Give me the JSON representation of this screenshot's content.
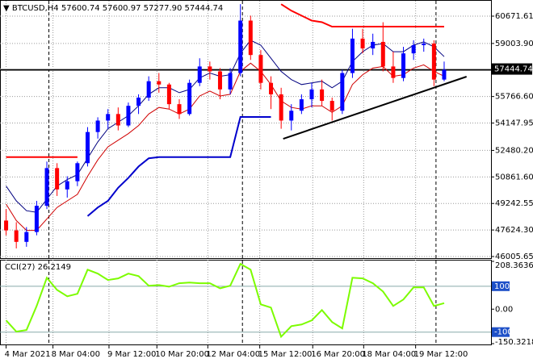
{
  "header": "▼ BTCUSD,H4  57600.74 57600.97 57277.90 57444.74",
  "chart_data": [
    {
      "type": "candlestick",
      "open": [
        48200,
        47600,
        46900,
        47500,
        49100,
        51400,
        50100,
        50600,
        51700,
        53600,
        54300,
        54700,
        54000,
        55200,
        55700,
        56700,
        56500,
        55300,
        54700,
        56600,
        57600,
        57300,
        56200,
        57200,
        60400,
        58300,
        56600,
        55900,
        54300,
        54900,
        55600,
        56200,
        55500,
        54900,
        57200,
        59300,
        58700,
        59100,
        57600,
        56900,
        58400,
        58900,
        59000,
        56800
      ],
      "high": [
        48900,
        48100,
        47800,
        49400,
        51800,
        51700,
        50900,
        51800,
        53900,
        54500,
        55000,
        55100,
        55400,
        55900,
        57000,
        57200,
        56600,
        55600,
        56800,
        58100,
        57900,
        57500,
        57500,
        61400,
        60700,
        58600,
        57000,
        56300,
        55300,
        55900,
        56600,
        56800,
        55700,
        57400,
        59900,
        59900,
        59600,
        60300,
        58500,
        58800,
        59200,
        59300,
        59200,
        57900
      ],
      "low": [
        47300,
        46500,
        46600,
        47300,
        48900,
        49700,
        49600,
        50300,
        51500,
        53200,
        53800,
        53700,
        53900,
        54700,
        55500,
        56000,
        55000,
        54400,
        54600,
        56400,
        56800,
        55600,
        55900,
        57000,
        58000,
        56200,
        55000,
        53800,
        53700,
        54700,
        55100,
        55200,
        54300,
        54700,
        56900,
        58400,
        58300,
        57300,
        56600,
        56700,
        58000,
        58500,
        56400,
        56700
      ],
      "close": [
        47600,
        46900,
        47500,
        49100,
        51400,
        50100,
        50600,
        51700,
        53600,
        54300,
        54700,
        54000,
        55200,
        55700,
        56700,
        56500,
        55300,
        54700,
        56600,
        57600,
        57300,
        56200,
        57200,
        60400,
        58300,
        56600,
        55900,
        54300,
        54900,
        55600,
        56200,
        55500,
        54900,
        57200,
        59300,
        58700,
        59100,
        57600,
        56900,
        58400,
        58900,
        59000,
        56800,
        57400
      ],
      "up_color": "#0000ff",
      "down_color": "#ff0000",
      "lines": [
        {
          "color": "#000080",
          "width": 1,
          "values": [
            50300,
            49400,
            48800,
            48700,
            49500,
            50300,
            50700,
            51000,
            52000,
            53000,
            53800,
            54200,
            54600,
            55200,
            55900,
            56300,
            56300,
            56000,
            56200,
            56900,
            57200,
            57000,
            57100,
            58400,
            59200,
            58900,
            58100,
            57300,
            56800,
            56500,
            56600,
            56700,
            56300,
            56700,
            57900,
            58500,
            58900,
            59000,
            58500,
            58500,
            58900,
            59100,
            58800,
            58200
          ]
        },
        {
          "color": "#d00000",
          "width": 1,
          "values": [
            49200,
            48200,
            47600,
            47600,
            48300,
            49000,
            49400,
            49800,
            50900,
            51900,
            52700,
            53100,
            53500,
            54000,
            54700,
            55100,
            55000,
            54700,
            55000,
            55800,
            56100,
            55800,
            55900,
            57300,
            57800,
            57300,
            56500,
            55500,
            55100,
            55000,
            55200,
            55200,
            54800,
            55200,
            56500,
            57100,
            57500,
            57600,
            57000,
            57100,
            57500,
            57700,
            57300,
            57000
          ]
        },
        {
          "color": "#ff0000",
          "width": 2,
          "values": [
            52070,
            52070,
            52070,
            52070,
            52070,
            52070,
            52070,
            52070,
            null,
            null,
            null,
            null,
            null,
            null,
            null,
            null,
            null,
            null,
            null,
            null,
            null,
            null,
            null,
            null,
            null,
            null,
            null,
            61400,
            61000,
            60700,
            60400,
            60300,
            60030,
            60030,
            60030,
            60030,
            60030,
            60030,
            60030,
            60030,
            60030,
            60030,
            60030,
            60030
          ]
        },
        {
          "color": "#0000cc",
          "width": 2,
          "values": [
            null,
            null,
            null,
            null,
            null,
            null,
            null,
            null,
            48470,
            49000,
            49400,
            50200,
            50800,
            51500,
            52000,
            52070,
            52070,
            52070,
            52070,
            52070,
            52070,
            52070,
            52070,
            54520,
            54520,
            54520,
            54520,
            null,
            null,
            null,
            null,
            null,
            null,
            null,
            null,
            null,
            null,
            null,
            null,
            null,
            null,
            null,
            null,
            null
          ]
        }
      ],
      "hline": {
        "value": 57400,
        "color": "#000000"
      },
      "trendline": {
        "x": [
          27.2,
          45.2
        ],
        "values": [
          53190,
          56980
        ],
        "color": "#000000"
      },
      "last_price": 57444.74,
      "xlim": [
        -0.6,
        47.6
      ],
      "ylim": [
        45907,
        61557
      ],
      "yticks": [
        60671.61,
        {
          "value": 59003.9,
          "label": "59003.90"
        },
        {
          "value": 55766.6,
          "label": "55766.60"
        },
        54147.95,
        {
          "value": 52480.2,
          "label": "52480.20"
        },
        {
          "value": 50861.6,
          "label": "50861.60"
        },
        49242.55,
        {
          "value": 47624.3,
          "label": "47624.30"
        },
        46005.65
      ],
      "xticks": [
        {
          "value": 0,
          "label": "4 Mar 2021"
        },
        {
          "value": 4.6,
          "label": "8 Mar 04:00"
        },
        {
          "value": 10.1,
          "label": "9 Mar 12:00"
        },
        {
          "value": 14.8,
          "label": "10 Mar 20:00"
        },
        {
          "value": 19.8,
          "label": "12 Mar 04:00"
        },
        {
          "value": 24.9,
          "label": "15 Mar 12:00"
        },
        {
          "value": 30.1,
          "label": "16 Mar 20:00"
        },
        {
          "value": 35.1,
          "label": "18 Mar 04:00"
        },
        {
          "value": 40.2,
          "label": "19 Mar 12:00"
        }
      ],
      "separators": [
        4.2,
        23.2,
        42.2
      ],
      "grid": true
    },
    {
      "type": "line",
      "title": "CCI(27) 26.2149",
      "color": "#7cfc00",
      "values": [
        -49,
        -98,
        -91,
        14,
        137,
        84,
        56,
        67,
        172,
        155,
        127,
        134,
        155,
        144,
        102,
        105,
        98,
        113,
        116,
        113,
        113,
        91,
        102,
        197,
        172,
        21,
        7,
        -120,
        -74,
        -67,
        -49,
        -4,
        -56,
        -84,
        137,
        134,
        113,
        77,
        14,
        42,
        95,
        95,
        14,
        26.2149
      ],
      "xlim": [
        -0.6,
        47.6
      ],
      "ylim": [
        -150.3218,
        208.3636
      ],
      "yticks": [
        208.3636,
        {
          "value": 0,
          "label": "0.00"
        },
        -150.3218
      ],
      "levels": [
        100,
        -100
      ],
      "level_color": "#1e50c8"
    }
  ]
}
